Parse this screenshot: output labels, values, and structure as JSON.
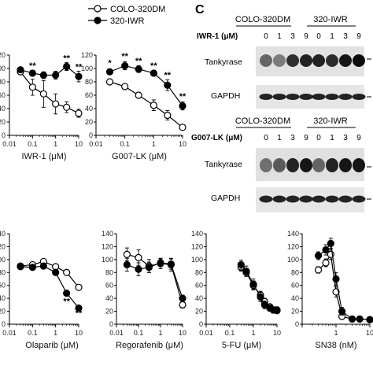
{
  "legend": {
    "series": [
      {
        "name": "COLO-320DM",
        "marker": "open-circle"
      },
      {
        "name": "320-IWR",
        "marker": "filled-circle"
      }
    ]
  },
  "panel_letter": "C",
  "chart_data": [
    {
      "type": "line",
      "xscale": "log",
      "xlabel": "IWR-1 (μM)",
      "xlim": [
        0.01,
        10
      ],
      "xticks": [
        "0.01",
        "0.1",
        "1",
        "10"
      ],
      "ylim": [
        0,
        120
      ],
      "yticks": [
        "0",
        "20",
        "40",
        "60",
        "80",
        "100",
        "120"
      ],
      "x": [
        0.03,
        0.1,
        0.3,
        1,
        3,
        10
      ],
      "series": [
        {
          "name": "COLO-320DM",
          "values": [
            95,
            72,
            62,
            47,
            42,
            33
          ],
          "err": [
            4,
            12,
            20,
            15,
            8,
            6
          ]
        },
        {
          "name": "320-IWR",
          "values": [
            98,
            93,
            90,
            90,
            103,
            88
          ],
          "err": [
            3,
            4,
            5,
            6,
            6,
            8
          ]
        }
      ],
      "annotations": [
        {
          "x": 0.1,
          "y": 100,
          "text": "**"
        },
        {
          "x": 3,
          "y": 111,
          "text": "**"
        },
        {
          "x": 10,
          "y": 98,
          "text": "**"
        }
      ]
    },
    {
      "type": "line",
      "xscale": "log",
      "xlabel": "G007-LK (μM)",
      "xlim": [
        0.01,
        10
      ],
      "xticks": [
        "0.01",
        "0.1",
        "1",
        "10"
      ],
      "ylim": [
        0,
        120
      ],
      "yticks": [
        "0",
        "20",
        "40",
        "60",
        "80",
        "100",
        "120"
      ],
      "x": [
        0.03,
        0.1,
        0.3,
        1,
        3,
        10
      ],
      "series": [
        {
          "name": "COLO-320DM",
          "values": [
            80,
            73,
            60,
            45,
            30,
            12
          ],
          "err": [
            2,
            3,
            4,
            8,
            7,
            3
          ]
        },
        {
          "name": "320-IWR",
          "values": [
            95,
            104,
            99,
            93,
            75,
            44
          ],
          "err": [
            3,
            6,
            5,
            4,
            8,
            6
          ]
        }
      ],
      "annotations": [
        {
          "x": 0.03,
          "y": 104,
          "text": "*"
        },
        {
          "x": 0.1,
          "y": 114,
          "text": "**"
        },
        {
          "x": 0.3,
          "y": 107,
          "text": "**"
        },
        {
          "x": 1,
          "y": 100,
          "text": "**"
        },
        {
          "x": 3,
          "y": 86,
          "text": "**"
        },
        {
          "x": 10,
          "y": 54,
          "text": "**"
        }
      ]
    },
    {
      "type": "line",
      "xscale": "log",
      "xlabel": "Olaparib (μM)",
      "xlim": [
        0.01,
        10
      ],
      "xticks": [
        "0.01",
        "0.1",
        "1",
        "10"
      ],
      "ylim": [
        0,
        140
      ],
      "yticks": [
        "0",
        "20",
        "40",
        "60",
        "80",
        "100",
        "120",
        "140"
      ],
      "x": [
        0.03,
        0.1,
        0.3,
        1,
        3,
        10
      ],
      "series": [
        {
          "name": "COLO-320DM",
          "values": [
            90,
            92,
            97,
            89,
            80,
            57
          ],
          "err": [
            2,
            3,
            4,
            3,
            4,
            3
          ]
        },
        {
          "name": "320-IWR",
          "values": [
            89,
            88,
            90,
            80,
            48,
            25
          ],
          "err": [
            2,
            3,
            3,
            4,
            4,
            3
          ]
        }
      ],
      "annotations": [
        {
          "x": 3,
          "y": 31,
          "text": "**"
        },
        {
          "x": 10,
          "y": 13,
          "text": "**"
        }
      ]
    },
    {
      "type": "line",
      "xscale": "log",
      "xlabel": "Regorafenib (μM)",
      "xlim": [
        0.01,
        10
      ],
      "xticks": [
        "0.01",
        "0.1",
        "1",
        "10"
      ],
      "ylim": [
        0,
        140
      ],
      "yticks": [
        "0",
        "20",
        "40",
        "60",
        "80",
        "100",
        "120",
        "140"
      ],
      "x": [
        0.03,
        0.1,
        0.3,
        1,
        3,
        10
      ],
      "series": [
        {
          "name": "COLO-320DM",
          "values": [
            108,
            103,
            90,
            94,
            92,
            30
          ],
          "err": [
            10,
            12,
            10,
            8,
            10,
            5
          ]
        },
        {
          "name": "320-IWR",
          "values": [
            92,
            85,
            88,
            95,
            93,
            40
          ],
          "err": [
            10,
            10,
            8,
            6,
            8,
            5
          ]
        }
      ],
      "annotations": []
    },
    {
      "type": "line",
      "xscale": "log",
      "xlabel": "5-FU (μM)",
      "xlim": [
        0.01,
        10
      ],
      "xticks": [
        "0.01",
        "0.1",
        "1",
        "10"
      ],
      "ylim": [
        0,
        140
      ],
      "yticks": [
        "0",
        "20",
        "40",
        "60",
        "80",
        "100",
        "120",
        "140"
      ],
      "x": [
        0.3,
        0.5,
        1,
        2,
        3,
        5,
        7,
        10
      ],
      "series": [
        {
          "name": "COLO-320DM",
          "values": [
            88,
            80,
            60,
            45,
            35,
            27,
            22,
            21
          ],
          "err": [
            6,
            6,
            7,
            6,
            5,
            4,
            4,
            4
          ]
        },
        {
          "name": "320-IWR",
          "values": [
            92,
            82,
            62,
            42,
            30,
            25,
            22,
            22
          ],
          "err": [
            7,
            8,
            8,
            7,
            6,
            5,
            5,
            5
          ]
        }
      ],
      "annotations": []
    },
    {
      "type": "line",
      "xscale": "log",
      "xlabel": "SN38 (nM)",
      "xlim": [
        0.1,
        10
      ],
      "xticks": [
        "1",
        "10"
      ],
      "ylim": [
        0,
        140
      ],
      "yticks": [
        "0",
        "20",
        "40",
        "60",
        "80",
        "100",
        "120",
        "140"
      ],
      "x": [
        0.3,
        0.5,
        0.7,
        1,
        1.5,
        3,
        5,
        10
      ],
      "series": [
        {
          "name": "COLO-320DM",
          "values": [
            84,
            95,
            108,
            50,
            12,
            8,
            8,
            7
          ],
          "err": [
            5,
            6,
            8,
            8,
            4,
            3,
            3,
            3
          ]
        },
        {
          "name": "320-IWR",
          "values": [
            106,
            115,
            125,
            70,
            20,
            8,
            8,
            7
          ],
          "err": [
            6,
            8,
            8,
            10,
            6,
            4,
            3,
            3
          ]
        }
      ],
      "annotations": []
    }
  ],
  "blots": [
    {
      "lines": [
        "COLO-320DM",
        "320-IWR"
      ],
      "condition": "IWR-1 (μM)",
      "concs": [
        "0",
        "1",
        "3",
        "9",
        "0",
        "1",
        "3",
        "9"
      ],
      "rows": [
        "Tankyrase",
        "GAPDH"
      ]
    },
    {
      "lines": [
        "COLO-320DM",
        "320-IWR"
      ],
      "condition": "G007-LK (μM)",
      "concs": [
        "0",
        "1",
        "3",
        "9",
        "0",
        "1",
        "3",
        "9"
      ],
      "rows": [
        "Tankyrase",
        "GAPDH"
      ]
    }
  ]
}
